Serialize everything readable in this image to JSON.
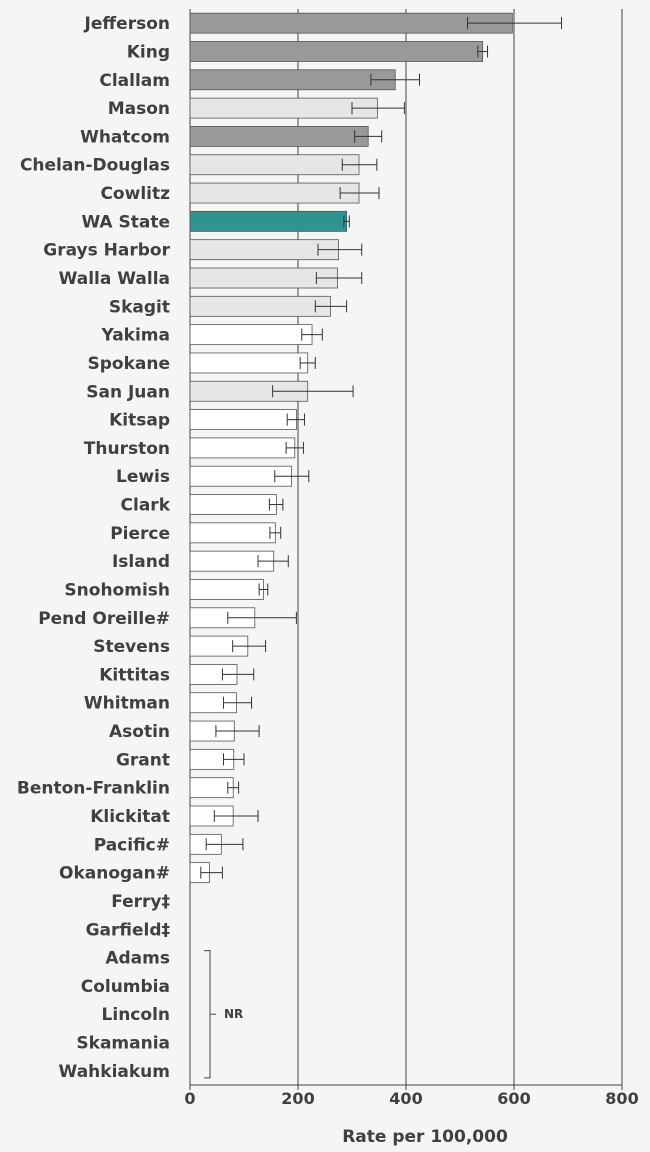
{
  "chart_data": {
    "type": "bar",
    "orientation": "horizontal",
    "xlabel": "Rate per 100,000",
    "xlim": [
      0,
      800
    ],
    "xticks": [
      0,
      200,
      400,
      600,
      800
    ],
    "grid": true,
    "colors": {
      "dark": "#999999",
      "light": "#e6e6e6",
      "white": "#ffffff",
      "state": "#2e9490",
      "edge": "#555555",
      "text": "#404040"
    },
    "categories": [
      "Jefferson",
      "King",
      "Clallam",
      "Mason",
      "Whatcom",
      "Chelan-Douglas",
      "Cowlitz",
      "WA State",
      "Grays Harbor",
      "Walla Walla",
      "Skagit",
      "Yakima",
      "Spokane",
      "San Juan",
      "Kitsap",
      "Thurston",
      "Lewis",
      "Clark",
      "Pierce",
      "Island",
      "Snohomish",
      "Pend Oreille#",
      "Stevens",
      "Kittitas",
      "Whitman",
      "Asotin",
      "Grant",
      "Benton-Franklin",
      "Klickitat",
      "Pacific#",
      "Okanogan#",
      "Ferry‡",
      "Garfield‡",
      "Adams",
      "Columbia",
      "Lincoln",
      "Skamania",
      "Wahkiakum"
    ],
    "values": [
      597,
      542,
      380,
      347,
      330,
      313,
      313,
      290,
      275,
      273,
      260,
      226,
      218,
      218,
      197,
      194,
      188,
      160,
      158,
      155,
      136,
      120,
      107,
      87,
      86,
      82,
      81,
      80,
      80,
      58,
      36,
      null,
      null,
      null,
      null,
      null,
      null,
      null
    ],
    "lower": [
      514,
      533,
      335,
      300,
      305,
      282,
      278,
      285,
      237,
      234,
      232,
      207,
      204,
      153,
      180,
      178,
      157,
      147,
      148,
      126,
      128,
      70,
      79,
      60,
      62,
      48,
      62,
      70,
      45,
      30,
      20,
      null,
      null,
      null,
      null,
      null,
      null,
      null
    ],
    "upper": [
      688,
      551,
      425,
      397,
      355,
      346,
      350,
      295,
      318,
      318,
      290,
      245,
      232,
      302,
      212,
      210,
      220,
      172,
      168,
      182,
      144,
      197,
      140,
      118,
      114,
      128,
      100,
      90,
      126,
      98,
      60,
      null,
      null,
      null,
      null,
      null,
      null,
      null
    ],
    "category_shade": [
      "dark",
      "dark",
      "dark",
      "light",
      "dark",
      "light",
      "light",
      "state",
      "light",
      "light",
      "light",
      "white",
      "white",
      "light",
      "white",
      "white",
      "white",
      "white",
      "white",
      "white",
      "white",
      "white",
      "white",
      "white",
      "white",
      "white",
      "white",
      "white",
      "white",
      "white",
      "white",
      null,
      null,
      null,
      null,
      null,
      null,
      null
    ],
    "annotations": [
      {
        "text": "NR",
        "categories": [
          "Adams",
          "Columbia",
          "Lincoln",
          "Skamania",
          "Wahkiakum"
        ]
      }
    ]
  }
}
